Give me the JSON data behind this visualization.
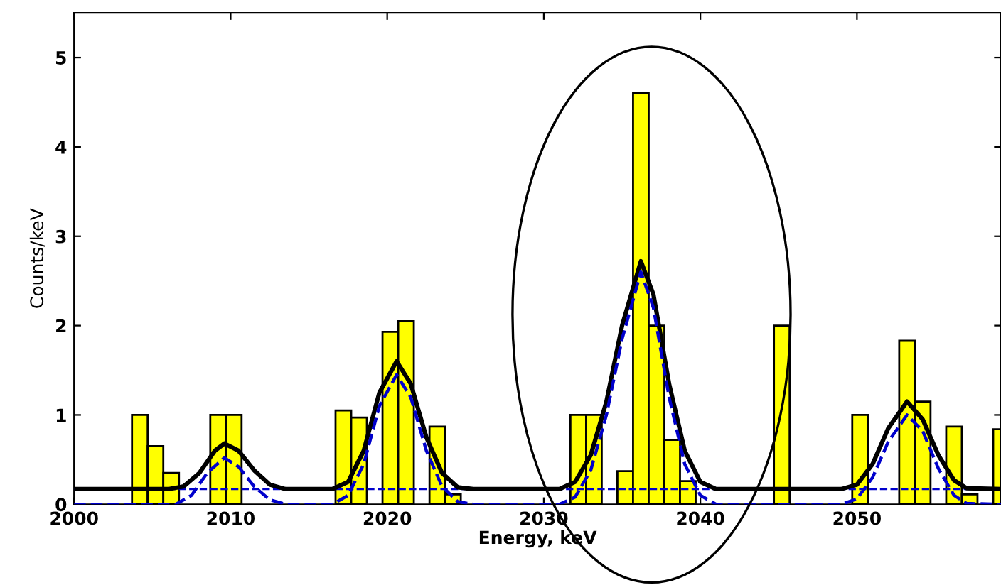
{
  "chart_data": {
    "type": "histogram",
    "xlabel": "Energy, keV",
    "ylabel": "Counts/keV",
    "bins": [
      2003.7,
      2004.7,
      2005.7,
      2006.7,
      2007.7,
      2008.7,
      2009.7,
      2010.7,
      2011.7,
      2012.7,
      2013.7,
      2014.7,
      2015.7,
      2016.7,
      2017.7,
      2018.7,
      2019.7,
      2020.7,
      2021.7,
      2022.7,
      2023.7,
      2024.7,
      2025.7,
      2026.7,
      2027.7,
      2028.7,
      2029.7,
      2030.7,
      2031.7,
      2032.7,
      2033.7,
      2034.7,
      2035.7,
      2036.7,
      2037.7,
      2038.7,
      2039.7,
      2040.7,
      2041.7,
      2042.7,
      2043.7,
      2044.7,
      2045.7,
      2046.7,
      2047.7,
      2048.7,
      2049.7,
      2050.7,
      2051.7,
      2052.7,
      2053.7,
      2054.7,
      2055.7,
      2056.7,
      2057.7,
      2058.7,
      2059.7
    ],
    "values": [
      1.0,
      0.65,
      0.35,
      0,
      0,
      1.0,
      1.0,
      0,
      0,
      0,
      0,
      0,
      0,
      1.05,
      0.97,
      0,
      1.93,
      2.05,
      0,
      0.87,
      0.11,
      0,
      0,
      0,
      0,
      0,
      0,
      0,
      1.0,
      1.0,
      0,
      0.37,
      4.6,
      2.0,
      0.72,
      0.26,
      0,
      0,
      0,
      0,
      0,
      2.0,
      0,
      0,
      0,
      0,
      1.0,
      0,
      0,
      1.83,
      1.15,
      0,
      0.87,
      0.11,
      0,
      0.84
    ],
    "color": "#ffff00",
    "series": [
      {
        "type": "line",
        "color": "#000000",
        "line_style": "solid",
        "x": [
          2000,
          2006,
          2007,
          2008,
          2009,
          2009.6,
          2010.5,
          2011.5,
          2012.5,
          2013.5,
          2016.5,
          2017.5,
          2018.5,
          2019.5,
          2020.6,
          2021.5,
          2022.5,
          2023.5,
          2024.5,
          2025.5,
          2031,
          2032,
          2033,
          2034,
          2035,
          2036.2,
          2037,
          2038,
          2039,
          2040,
          2041,
          2049,
          2050,
          2051,
          2052,
          2053.2,
          2054.2,
          2055.2,
          2056.2,
          2057,
          2059.2
        ],
        "values": [
          0.17,
          0.17,
          0.2,
          0.35,
          0.6,
          0.68,
          0.6,
          0.38,
          0.22,
          0.17,
          0.17,
          0.25,
          0.6,
          1.25,
          1.6,
          1.35,
          0.75,
          0.35,
          0.19,
          0.17,
          0.17,
          0.25,
          0.55,
          1.15,
          2.0,
          2.72,
          2.35,
          1.35,
          0.6,
          0.25,
          0.17,
          0.17,
          0.22,
          0.45,
          0.85,
          1.15,
          0.95,
          0.55,
          0.27,
          0.18,
          0.17
        ]
      },
      {
        "type": "line",
        "color": "#0000cc",
        "line_style": "dashed",
        "x": [
          2000,
          2006.5,
          2007.5,
          2008.5,
          2009.6,
          2010.5,
          2011.5,
          2012.5,
          2013.5,
          2016.5,
          2017.5,
          2018.5,
          2019.5,
          2020.6,
          2021.5,
          2022.5,
          2023.5,
          2024.5,
          2025.5,
          2031,
          2032,
          2033,
          2034,
          2035,
          2036.2,
          2037,
          2038,
          2039,
          2040,
          2041,
          2049,
          2050,
          2051,
          2052,
          2053.2,
          2054.2,
          2055.2,
          2056.2,
          2057,
          2059.2
        ],
        "values": [
          0,
          0,
          0.1,
          0.35,
          0.52,
          0.42,
          0.2,
          0.05,
          0,
          0,
          0.1,
          0.45,
          1.1,
          1.45,
          1.2,
          0.6,
          0.2,
          0.03,
          0,
          0,
          0.08,
          0.38,
          1.0,
          1.85,
          2.6,
          2.2,
          1.2,
          0.45,
          0.1,
          0,
          0,
          0.06,
          0.3,
          0.7,
          1.0,
          0.82,
          0.4,
          0.1,
          0.01,
          0
        ]
      }
    ],
    "ref_lines": [
      {
        "axis": "y",
        "value": 0.17,
        "color": "#0000cc",
        "line_style": "dashed"
      }
    ],
    "xlim": [
      2000,
      2059.2
    ],
    "ylim": [
      0,
      5.5
    ],
    "xticks": [
      2000,
      2010,
      2020,
      2030,
      2040,
      2050
    ],
    "yticks": [
      0,
      1,
      2,
      3,
      4,
      5
    ],
    "grid": false,
    "legend": false
  }
}
